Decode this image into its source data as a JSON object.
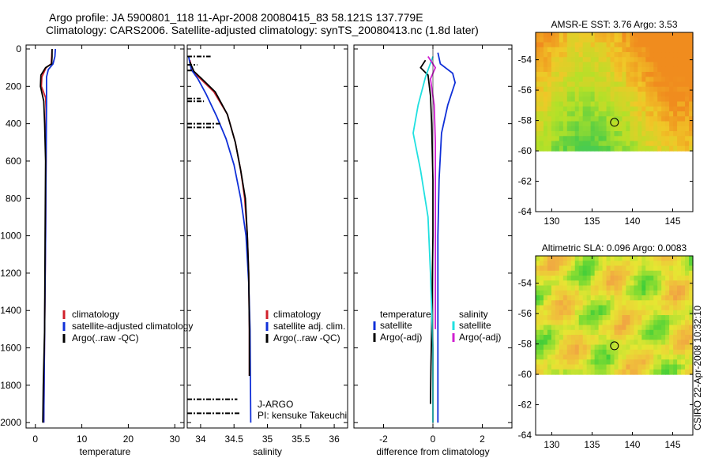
{
  "header": {
    "line1": "Argo profile: JA 5900801_118 11-Apr-2008 20080415_83 58.121S 137.779E",
    "line2": "Climatology: CARS2006. Satellite-adjusted climatology: synTS_20080413.nc (1.8d later)"
  },
  "side_stamp": "CSIRO 22-Apr-2008 10:32:10",
  "colors": {
    "clim": "#d0202a",
    "sat": "#1030d8",
    "argo": "#000000",
    "cyan": "#20e0e0",
    "magenta": "#d020d0"
  },
  "chart_data": [
    {
      "id": "temperature",
      "type": "line",
      "xlabel": "temperature",
      "xlim": [
        -2,
        32
      ],
      "ylim": [
        0,
        2050
      ],
      "x_ticks": [
        0,
        10,
        20,
        30
      ],
      "y_ticks": [
        0,
        200,
        400,
        600,
        800,
        1000,
        1200,
        1400,
        1600,
        1800,
        2000
      ],
      "series": [
        {
          "name": "climatology",
          "color": "clim",
          "points": [
            [
              3.6,
              0
            ],
            [
              3.5,
              40
            ],
            [
              3.4,
              80
            ],
            [
              2.3,
              100
            ],
            [
              1.4,
              150
            ],
            [
              1.3,
              200
            ],
            [
              2.2,
              260
            ],
            [
              2.3,
              320
            ],
            [
              2.3,
              600
            ],
            [
              2.2,
              1000
            ],
            [
              2.0,
              1500
            ],
            [
              1.8,
              2000
            ]
          ]
        },
        {
          "name": "satellite-adjusted climatology",
          "color": "sat",
          "points": [
            [
              4.3,
              0
            ],
            [
              4.2,
              40
            ],
            [
              3.8,
              80
            ],
            [
              2.8,
              110
            ],
            [
              2.4,
              150
            ],
            [
              2.4,
              300
            ],
            [
              2.3,
              600
            ],
            [
              2.2,
              1000
            ],
            [
              2.0,
              1500
            ],
            [
              1.8,
              2000
            ]
          ]
        },
        {
          "name": "Argo(..raw -QC)",
          "color": "argo",
          "points": [
            [
              3.6,
              0
            ],
            [
              3.6,
              40
            ],
            [
              3.5,
              80
            ],
            [
              2.2,
              100
            ],
            [
              1.2,
              140
            ],
            [
              1.1,
              200
            ],
            [
              1.8,
              280
            ],
            [
              2.0,
              400
            ],
            [
              2.2,
              600
            ],
            [
              2.1,
              1000
            ],
            [
              2.0,
              1500
            ],
            [
              1.7,
              1800
            ],
            [
              1.6,
              2000
            ]
          ]
        }
      ],
      "legend": [
        "climatology",
        "satellite-adjusted climatology",
        "Argo(..raw -QC)"
      ]
    },
    {
      "id": "salinity",
      "type": "line",
      "xlabel": "salinity",
      "xlim": [
        33.8,
        36.2
      ],
      "ylim": [
        0,
        2050
      ],
      "x_ticks": [
        34,
        34.5,
        35,
        35.5,
        36
      ],
      "series": [
        {
          "name": "climatology",
          "color": "clim",
          "points": [
            [
              33.84,
              60
            ],
            [
              33.88,
              120
            ],
            [
              34.0,
              160
            ],
            [
              34.2,
              230
            ],
            [
              34.4,
              350
            ],
            [
              34.52,
              500
            ],
            [
              34.6,
              650
            ],
            [
              34.66,
              800
            ],
            [
              34.7,
              1000
            ],
            [
              34.72,
              1200
            ],
            [
              34.73,
              1500
            ],
            [
              34.73,
              1750
            ]
          ]
        },
        {
          "name": "satellite adj. clim.",
          "color": "sat",
          "points": [
            [
              33.82,
              40
            ],
            [
              33.86,
              110
            ],
            [
              33.96,
              160
            ],
            [
              34.08,
              240
            ],
            [
              34.24,
              360
            ],
            [
              34.38,
              480
            ],
            [
              34.5,
              620
            ],
            [
              34.6,
              800
            ],
            [
              34.68,
              1000
            ],
            [
              34.72,
              1250
            ],
            [
              34.74,
              1500
            ],
            [
              34.75,
              2000
            ]
          ]
        },
        {
          "name": "Argo(..raw -QC)",
          "color": "argo",
          "points": [
            [
              33.84,
              70
            ],
            [
              33.9,
              120
            ],
            [
              34.02,
              160
            ],
            [
              34.22,
              230
            ],
            [
              34.4,
              350
            ],
            [
              34.52,
              500
            ],
            [
              34.6,
              650
            ],
            [
              34.67,
              800
            ],
            [
              34.7,
              1000
            ],
            [
              34.72,
              1200
            ],
            [
              34.73,
              1500
            ],
            [
              34.73,
              1750
            ]
          ]
        }
      ],
      "legend": [
        "climatology",
        "satellite adj. clim.",
        "Argo(..raw -QC)"
      ],
      "annotations": [
        "J-ARGO",
        "PI: kensuke Takeuchi"
      ]
    },
    {
      "id": "difference",
      "type": "line",
      "xlabel": "difference from climatology",
      "xlim": [
        -3.2,
        3.2
      ],
      "ylim": [
        0,
        2050
      ],
      "x_ticks": [
        -2,
        0,
        2
      ],
      "series": [
        {
          "name": "temperature satellite",
          "color": "sat",
          "points": [
            [
              0.2,
              20
            ],
            [
              0.3,
              80
            ],
            [
              0.8,
              130
            ],
            [
              0.9,
              180
            ],
            [
              0.6,
              300
            ],
            [
              0.35,
              450
            ],
            [
              0.25,
              700
            ],
            [
              0.2,
              1000
            ],
            [
              0.2,
              1500
            ],
            [
              0.2,
              2000
            ]
          ]
        },
        {
          "name": "temperature Argo(-adj)",
          "color": "argo",
          "points": [
            [
              -0.3,
              60
            ],
            [
              -0.5,
              100
            ],
            [
              -0.2,
              140
            ],
            [
              -0.1,
              250
            ],
            [
              -0.05,
              400
            ],
            [
              0,
              700
            ],
            [
              0,
              1000
            ],
            [
              -0.05,
              1500
            ],
            [
              -0.08,
              1700
            ],
            [
              -0.1,
              1900
            ]
          ]
        },
        {
          "name": "salinity satellite",
          "color": "cyan",
          "points": [
            [
              0.0,
              40
            ],
            [
              -0.3,
              150
            ],
            [
              -0.6,
              300
            ],
            [
              -0.8,
              450
            ],
            [
              -0.5,
              650
            ],
            [
              -0.2,
              900
            ],
            [
              -0.1,
              1200
            ],
            [
              0.0,
              1600
            ],
            [
              0.0,
              2000
            ]
          ]
        },
        {
          "name": "salinity Argo(-adj)",
          "color": "magenta",
          "points": [
            [
              -0.2,
              40
            ],
            [
              0.1,
              100
            ],
            [
              -0.1,
              160
            ],
            [
              0.05,
              300
            ],
            [
              0.1,
              500
            ],
            [
              0.1,
              800
            ],
            [
              0.1,
              1100
            ],
            [
              0.1,
              1500
            ]
          ]
        }
      ],
      "legend_left_title": "temperature",
      "legend_right_title": "salinity",
      "legend_left": [
        "satellite",
        "Argo(-adj)"
      ],
      "legend_right": [
        "satellite",
        "Argo(-adj)"
      ]
    },
    {
      "id": "sst_map",
      "type": "heatmap",
      "title": "AMSR-E SST: 3.76 Argo: 3.53",
      "x_ticks": [
        130,
        135,
        140,
        145
      ],
      "y_ticks": [
        -54,
        -56,
        -58,
        -60,
        -62,
        -64
      ],
      "xlim": [
        128,
        147.5
      ],
      "ylim": [
        -64,
        -52.2
      ],
      "data_ylim": [
        -60,
        -52.2
      ],
      "marker": [
        137.78,
        -58.12
      ]
    },
    {
      "id": "sla_map",
      "type": "heatmap",
      "title": "Altimetric SLA: 0.096 Argo: 0.0083",
      "x_ticks": [
        130,
        135,
        140,
        145
      ],
      "y_ticks": [
        -54,
        -56,
        -58,
        -60,
        -62,
        -64
      ],
      "xlim": [
        128,
        147.5
      ],
      "ylim": [
        -64,
        -52.2
      ],
      "data_ylim": [
        -60,
        -52.2
      ],
      "marker": [
        137.78,
        -58.12
      ]
    }
  ]
}
